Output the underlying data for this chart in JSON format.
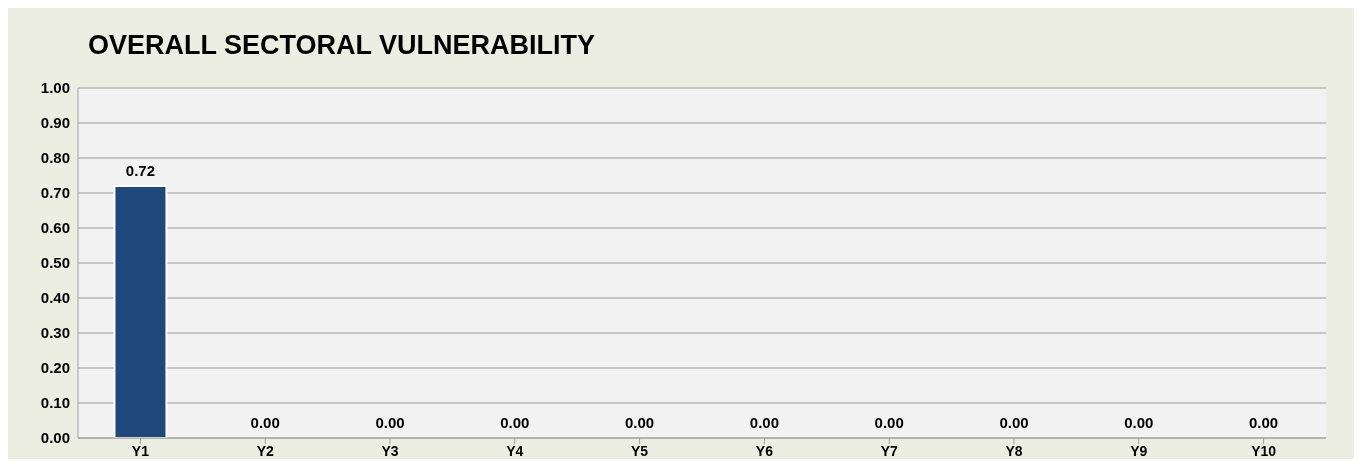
{
  "chart_data": {
    "type": "bar",
    "title": "OVERALL SECTORAL VULNERABILITY",
    "categories": [
      "Y1",
      "Y2",
      "Y3",
      "Y4",
      "Y5",
      "Y6",
      "Y7",
      "Y8",
      "Y9",
      "Y10"
    ],
    "values": [
      0.72,
      0,
      0,
      0,
      0,
      0,
      0,
      0,
      0,
      0
    ],
    "value_labels": [
      "0.72",
      "0.00",
      "0.00",
      "0.00",
      "0.00",
      "0.00",
      "0.00",
      "0.00",
      "0.00",
      "0.00"
    ],
    "color": "#1f497d",
    "ylim": [
      0,
      1
    ],
    "yticks": [
      {
        "value": 0,
        "label": "0.00"
      },
      {
        "value": 0.1,
        "label": "0.10"
      },
      {
        "value": 0.2,
        "label": "0.20"
      },
      {
        "value": 0.3,
        "label": "0.30"
      },
      {
        "value": 0.4,
        "label": "0.40"
      },
      {
        "value": 0.5,
        "label": "0.50"
      },
      {
        "value": 0.6,
        "label": "0.60"
      },
      {
        "value": 0.7,
        "label": "0.70"
      },
      {
        "value": 0.8,
        "label": "0.80"
      },
      {
        "value": 0.9,
        "label": "0.90"
      },
      {
        "value": 1,
        "label": "1.00"
      }
    ],
    "grid": "y"
  }
}
